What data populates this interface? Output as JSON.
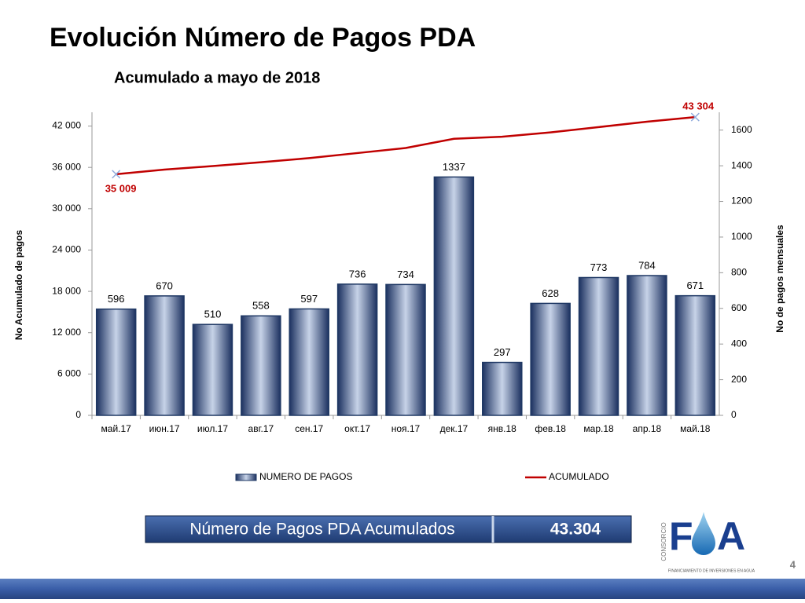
{
  "chart_data": {
    "type": "combo",
    "title": "Evolución Número de Pagos PDA",
    "subtitle": "Acumulado a mayo de 2018",
    "ylabel": "No Acumulado de pagos",
    "y2label": "No de pagos mensuales",
    "categories": [
      "май.17",
      "июн.17",
      "июл.17",
      "авг.17",
      "сен.17",
      "окт.17",
      "ноя.17",
      "дек.17",
      "янв.18",
      "фев.18",
      "мар.18",
      "апр.18",
      "май.18"
    ],
    "series": [
      {
        "name": "NUMERO DE PAGOS",
        "type": "bar",
        "axis": "y2",
        "color": "#1f3864",
        "values": [
          596,
          670,
          510,
          558,
          597,
          736,
          734,
          1337,
          297,
          628,
          773,
          784,
          671
        ]
      },
      {
        "name": "ACUMULADO",
        "type": "line",
        "color": "#c00000",
        "values": [
          35009,
          35679,
          36189,
          36747,
          37344,
          38080,
          38814,
          40151,
          40448,
          41076,
          41849,
          42633,
          43304
        ],
        "value_labels": [
          "35 009",
          null,
          null,
          null,
          null,
          null,
          null,
          null,
          null,
          null,
          null,
          null,
          "43 304"
        ]
      }
    ],
    "ylim": [
      0,
      44000
    ],
    "yticks": [
      0,
      {
        "value": 6000,
        "label": "6 000"
      },
      {
        "value": 12000,
        "label": "12 000"
      },
      {
        "value": 18000,
        "label": "18 000"
      },
      {
        "value": 24000,
        "label": "24 000"
      },
      {
        "value": 30000,
        "label": "30 000"
      },
      {
        "value": 36000,
        "label": "36 000"
      },
      {
        "value": 42000,
        "label": "42 000"
      }
    ],
    "y2lim": [
      0,
      1700
    ],
    "y2ticks": [
      0,
      200,
      400,
      600,
      800,
      1000,
      1200,
      1400,
      1600
    ],
    "legend": "bottom"
  },
  "summary": {
    "label": "Número de Pagos PDA Acumulados",
    "value": "43.304"
  },
  "logo": {
    "vertical": "CONSORCIO",
    "left": "F",
    "right": "A",
    "tagline": "FINANCIAMIENTO DE INVERSIONES EN AGUA"
  },
  "page_number": "4"
}
